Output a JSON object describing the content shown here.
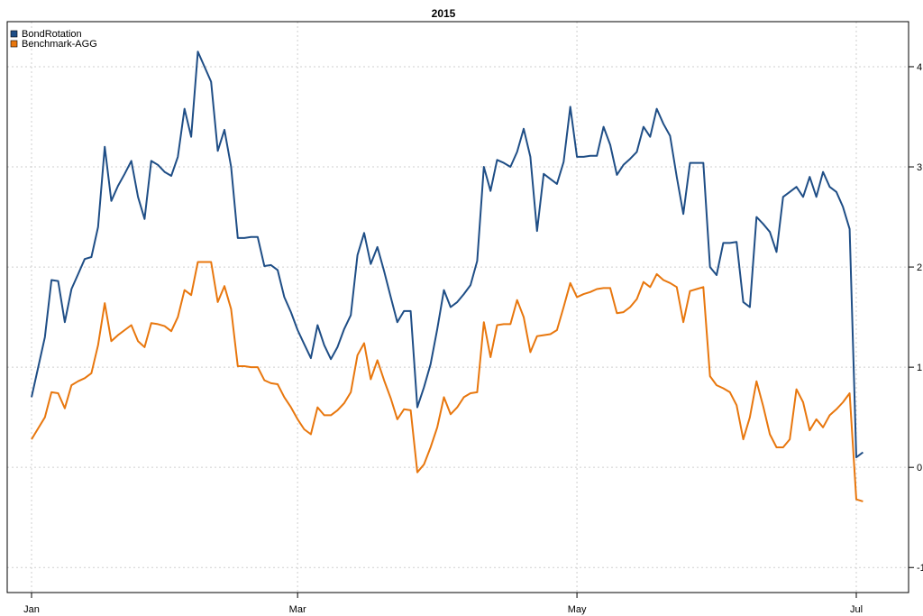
{
  "chart_data": {
    "type": "line",
    "title": "2015",
    "xlabel": "",
    "ylabel": "",
    "x_ticks": [
      "Jan",
      "Mar",
      "May",
      "Jul"
    ],
    "y_ticks": [
      -1,
      0,
      1,
      2,
      3,
      4
    ],
    "ylim": [
      -1.25,
      4.45
    ],
    "grid": true,
    "y_axis_position": "right",
    "legend_position": "top-left",
    "x_range_trading_days": [
      0,
      124
    ],
    "x_tick_positions": [
      0,
      40,
      82,
      124
    ],
    "series": [
      {
        "name": "BondRotation",
        "color": "#1f4e86",
        "values": [
          0.7,
          1.0,
          1.3,
          1.87,
          1.86,
          1.45,
          1.78,
          1.93,
          2.08,
          2.1,
          2.4,
          3.2,
          2.66,
          2.81,
          2.93,
          3.06,
          2.7,
          2.48,
          3.06,
          3.02,
          2.95,
          2.91,
          3.1,
          3.58,
          3.3,
          4.15,
          4.0,
          3.85,
          3.16,
          3.37,
          3.0,
          2.29,
          2.29,
          2.3,
          2.3,
          2.01,
          2.02,
          1.97,
          1.7,
          1.55,
          1.37,
          1.23,
          1.09,
          1.42,
          1.22,
          1.08,
          1.2,
          1.38,
          1.52,
          2.12,
          2.34,
          2.03,
          2.2,
          1.96,
          1.7,
          1.45,
          1.56,
          1.56,
          0.6,
          0.8,
          1.03,
          1.38,
          1.77,
          1.6,
          1.65,
          1.73,
          1.82,
          2.06,
          3.0,
          2.76,
          3.07,
          3.04,
          3.0,
          3.15,
          3.38,
          3.1,
          2.36,
          2.93,
          2.88,
          2.83,
          3.05,
          3.6,
          3.1,
          3.1,
          3.11,
          3.11,
          3.4,
          3.22,
          2.92,
          3.02,
          3.08,
          3.15,
          3.4,
          3.3,
          3.58,
          3.43,
          3.31,
          2.9,
          2.53,
          3.04,
          3.04,
          3.04,
          2.0,
          1.92,
          2.24,
          2.24,
          2.25,
          1.65,
          1.6,
          2.5,
          2.43,
          2.35,
          2.15,
          2.7,
          2.75,
          2.8,
          2.7,
          2.9,
          2.7,
          2.95,
          2.8,
          2.75,
          2.6,
          2.38,
          0.1,
          0.15
        ]
      },
      {
        "name": "Benchmark-AGG",
        "color": "#e8770e",
        "values": [
          0.28,
          0.39,
          0.5,
          0.75,
          0.74,
          0.59,
          0.82,
          0.86,
          0.89,
          0.94,
          1.22,
          1.64,
          1.26,
          1.32,
          1.37,
          1.42,
          1.26,
          1.2,
          1.44,
          1.43,
          1.41,
          1.36,
          1.5,
          1.77,
          1.72,
          2.05,
          2.05,
          2.05,
          1.65,
          1.81,
          1.58,
          1.01,
          1.01,
          1.0,
          1.0,
          0.87,
          0.84,
          0.83,
          0.7,
          0.6,
          0.48,
          0.38,
          0.33,
          0.6,
          0.52,
          0.52,
          0.57,
          0.64,
          0.75,
          1.12,
          1.24,
          0.88,
          1.07,
          0.87,
          0.69,
          0.48,
          0.58,
          0.57,
          -0.05,
          0.03,
          0.2,
          0.4,
          0.7,
          0.53,
          0.6,
          0.7,
          0.74,
          0.75,
          1.45,
          1.1,
          1.42,
          1.43,
          1.43,
          1.67,
          1.5,
          1.15,
          1.31,
          1.32,
          1.33,
          1.37,
          1.6,
          1.84,
          1.7,
          1.73,
          1.75,
          1.78,
          1.79,
          1.79,
          1.54,
          1.55,
          1.6,
          1.68,
          1.85,
          1.8,
          1.93,
          1.87,
          1.84,
          1.8,
          1.45,
          1.76,
          1.78,
          1.8,
          0.91,
          0.82,
          0.79,
          0.75,
          0.62,
          0.28,
          0.5,
          0.86,
          0.61,
          0.33,
          0.2,
          0.2,
          0.28,
          0.78,
          0.65,
          0.37,
          0.48,
          0.4,
          0.52,
          0.58,
          0.65,
          0.74,
          -0.32,
          -0.34
        ]
      }
    ]
  }
}
